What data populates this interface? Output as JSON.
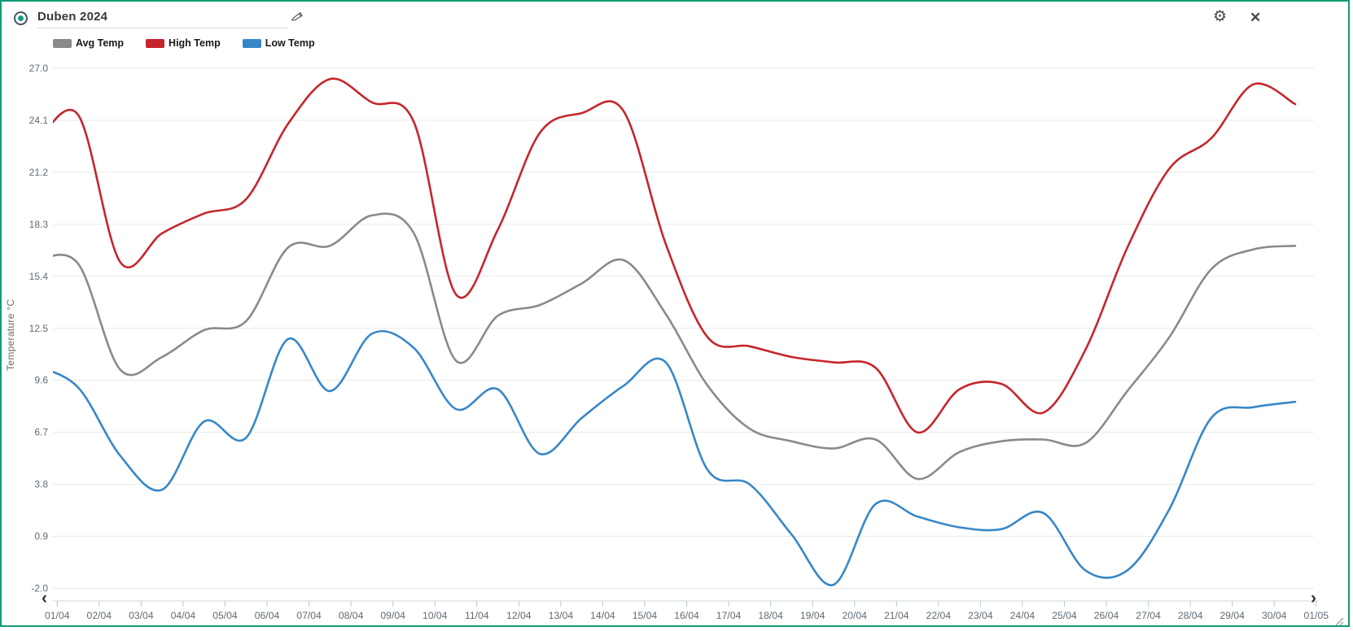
{
  "header": {
    "title": "Duben 2024"
  },
  "icons": {
    "gear": "⚙",
    "close": "✕",
    "prev": "‹",
    "next": "›"
  },
  "colors": {
    "window_border": "#119b76",
    "status_dot": "#16a085",
    "gridline": "#e9e9e9",
    "axis_line": "#ccd9e0",
    "axis_text": "#5f6b76"
  },
  "chart_data": {
    "type": "line",
    "title": "Duben 2024",
    "xlabel": "",
    "ylabel": "Temperature °C",
    "x_labels": [
      "01/04",
      "02/04",
      "03/04",
      "04/04",
      "05/04",
      "06/04",
      "07/04",
      "08/04",
      "09/04",
      "10/04",
      "11/04",
      "12/04",
      "13/04",
      "14/04",
      "15/04",
      "16/04",
      "17/04",
      "18/04",
      "19/04",
      "20/04",
      "21/04",
      "22/04",
      "23/04",
      "24/04",
      "25/04",
      "26/04",
      "27/04",
      "28/04",
      "29/04",
      "30/04",
      "01/05"
    ],
    "y_ticks": [
      27.0,
      24.1,
      21.2,
      18.3,
      15.4,
      12.5,
      9.6,
      6.7,
      3.8,
      0.9,
      -2.0
    ],
    "ylim": [
      -2.0,
      27.0
    ],
    "grid": "horizontal",
    "legend_position": "top-left",
    "series": [
      {
        "name": "Avg Temp",
        "color": "#8a8a8a",
        "values": [
          16.3,
          16.1,
          10.2,
          10.9,
          12.4,
          12.9,
          17.0,
          17.1,
          18.8,
          17.8,
          10.7,
          13.2,
          13.8,
          15.0,
          16.3,
          13.3,
          9.3,
          6.9,
          6.2,
          5.8,
          6.3,
          4.1,
          5.6,
          6.2,
          6.3,
          6.1,
          9.0,
          12.0,
          15.8,
          16.9,
          17.1
        ]
      },
      {
        "name": "High Temp",
        "color": "#c5262b",
        "values": [
          22.8,
          24.4,
          16.2,
          17.8,
          18.9,
          19.7,
          23.9,
          26.4,
          25.1,
          24.0,
          14.4,
          18.0,
          23.4,
          24.5,
          24.6,
          17.2,
          12.0,
          11.5,
          10.9,
          10.6,
          10.3,
          6.7,
          9.1,
          9.4,
          7.8,
          11.3,
          17.0,
          21.4,
          23.1,
          26.1,
          25.0
        ]
      },
      {
        "name": "Low Temp",
        "color": "#3787c8",
        "values": [
          10.4,
          9.2,
          5.4,
          3.5,
          7.3,
          6.4,
          11.9,
          9.0,
          12.2,
          11.4,
          8.0,
          9.1,
          5.5,
          7.5,
          9.3,
          10.6,
          4.6,
          3.8,
          1.0,
          -1.8,
          2.7,
          2.0,
          1.4,
          1.3,
          2.2,
          -1.0,
          -1.0,
          2.4,
          7.5,
          8.1,
          8.4
        ]
      }
    ]
  }
}
